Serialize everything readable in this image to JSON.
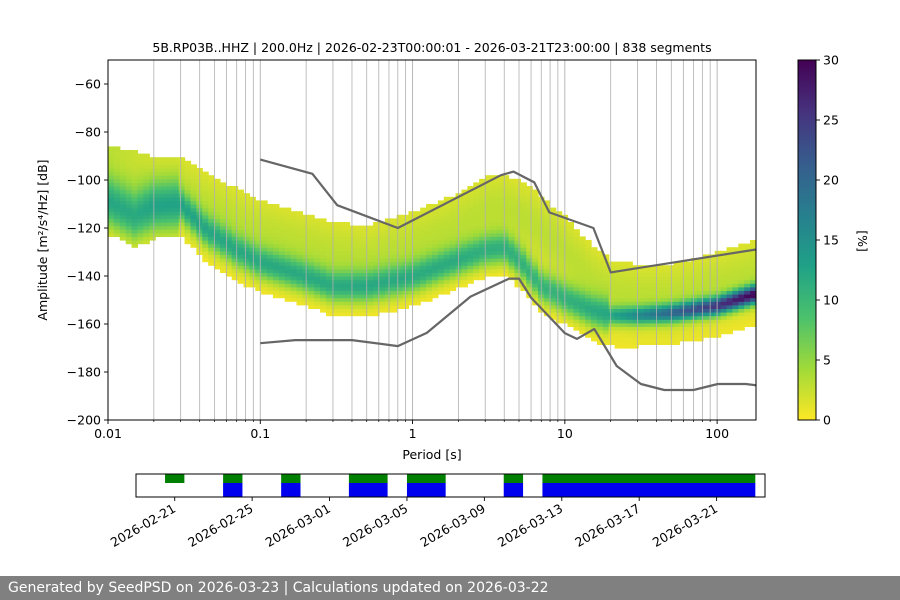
{
  "footer": {
    "text": "Generated by SeedPSD on 2026-03-23 | Calculations updated on 2026-03-22"
  },
  "chart_data": {
    "type": "heatmap",
    "title": "5B.RP03B..HHZ | 200.0Hz | 2026-02-23T00:00:01 - 2026-03-21T23:00:00 | 838 segments",
    "xlabel": "Period [s]",
    "ylabel": "Amplitude [m²/s⁴/Hz] [dB]",
    "xscale": "log",
    "xlim": [
      0.01,
      180
    ],
    "ylim": [
      -200,
      -50
    ],
    "x_ticks": [
      0.01,
      0.1,
      1,
      10,
      100
    ],
    "x_tick_labels": [
      "0.01",
      "0.1",
      "1",
      "10",
      "100"
    ],
    "y_ticks": [
      -200,
      -180,
      -160,
      -140,
      -120,
      -100,
      -80,
      -60
    ],
    "y_tick_labels": [
      "−200",
      "−180",
      "−160",
      "−140",
      "−120",
      "−100",
      "−80",
      "−60"
    ],
    "grid": true,
    "colorbar": {
      "label": "[%]",
      "range": [
        0,
        30
      ],
      "ticks": [
        0,
        5,
        10,
        15,
        20,
        25,
        30
      ],
      "colormap": "viridis_r",
      "colors": [
        "#fde725",
        "#a0da39",
        "#4ac16d",
        "#1fa187",
        "#277f8e",
        "#365c8d",
        "#46327e",
        "#440154"
      ]
    },
    "density_ridges": [
      {
        "name": "main",
        "points": [
          [
            0.01,
            -110
          ],
          [
            0.015,
            -116
          ],
          [
            0.02,
            -112
          ],
          [
            0.03,
            -111
          ],
          [
            0.045,
            -122
          ],
          [
            0.07,
            -130
          ],
          [
            0.1,
            -135
          ],
          [
            0.2,
            -141
          ],
          [
            0.3,
            -145
          ],
          [
            0.5,
            -145
          ],
          [
            1,
            -141
          ],
          [
            2,
            -134
          ],
          [
            3,
            -130
          ],
          [
            4,
            -129
          ],
          [
            5,
            -134
          ],
          [
            7,
            -145
          ],
          [
            10,
            -150
          ],
          [
            15,
            -155
          ],
          [
            20,
            -157
          ],
          [
            30,
            -157
          ],
          [
            50,
            -156
          ],
          [
            100,
            -153
          ],
          [
            180,
            -148
          ]
        ]
      },
      {
        "name": "upper",
        "points": [
          [
            0.01,
            -100
          ],
          [
            0.02,
            -105
          ],
          [
            0.03,
            -105
          ],
          [
            0.05,
            -114
          ],
          [
            0.1,
            -123
          ],
          [
            0.3,
            -132
          ],
          [
            0.5,
            -134
          ],
          [
            1,
            -128
          ],
          [
            2,
            -120
          ],
          [
            3,
            -113
          ],
          [
            4,
            -112
          ],
          [
            6,
            -118
          ],
          [
            10,
            -130
          ],
          [
            15,
            -142
          ],
          [
            20,
            -148
          ],
          [
            30,
            -150
          ],
          [
            50,
            -150
          ],
          [
            100,
            -145
          ],
          [
            180,
            -140
          ]
        ]
      }
    ],
    "series": [
      {
        "name": "NHNM",
        "color": "#666666",
        "x": [
          0.1,
          0.22,
          0.32,
          0.8,
          3.8,
          4.6,
          6.3,
          7.9,
          15.4,
          20,
          354.8
        ],
        "y": [
          -91.5,
          -97.4,
          -110.5,
          -120.0,
          -98.0,
          -96.5,
          -101.0,
          -113.5,
          -120.0,
          -138.5,
          -126.0
        ]
      },
      {
        "name": "NLNM",
        "color": "#666666",
        "x": [
          0.1,
          0.17,
          0.4,
          0.8,
          1.24,
          2.4,
          4.3,
          5.0,
          6.0,
          10.0,
          12.0,
          15.6,
          21.9,
          31.6,
          45.0,
          70.0,
          101.0,
          154.0,
          328.0
        ],
        "y": [
          -168.0,
          -166.7,
          -166.7,
          -169.2,
          -163.7,
          -148.6,
          -141.1,
          -141.1,
          -149.0,
          -163.8,
          -166.2,
          -162.1,
          -177.5,
          -185.0,
          -187.5,
          -187.5,
          -185.0,
          -185.0,
          -187.5
        ]
      }
    ],
    "availability": {
      "date_ticks": [
        "2026-02-21",
        "2026-02-25",
        "2026-03-01",
        "2026-03-05",
        "2026-03-09",
        "2026-03-13",
        "2026-03-17",
        "2026-03-21"
      ],
      "data_range": [
        "2026-02-19T00:00",
        "2026-03-23T12:00"
      ],
      "green_spans": [
        [
          "2026-02-20T12:00",
          "2026-02-21T12:00"
        ],
        [
          "2026-02-23T12:00",
          "2026-02-24T12:00"
        ],
        [
          "2026-02-26T12:00",
          "2026-02-27T12:00"
        ],
        [
          "2026-03-02T00:00",
          "2026-03-04T00:00"
        ],
        [
          "2026-03-05T00:00",
          "2026-03-07T00:00"
        ],
        [
          "2026-03-10T00:00",
          "2026-03-11T00:00"
        ],
        [
          "2026-03-12T00:00",
          "2026-03-23T00:00"
        ]
      ],
      "blue_spans": [
        [
          "2026-02-23T12:00",
          "2026-02-24T12:00"
        ],
        [
          "2026-02-26T12:00",
          "2026-02-27T12:00"
        ],
        [
          "2026-03-02T00:00",
          "2026-03-04T00:00"
        ],
        [
          "2026-03-05T00:00",
          "2026-03-07T00:00"
        ],
        [
          "2026-03-10T00:00",
          "2026-03-11T00:00"
        ],
        [
          "2026-03-12T00:00",
          "2026-03-23T00:00"
        ]
      ],
      "green_color": "#008000",
      "blue_color": "#0000ee"
    }
  }
}
